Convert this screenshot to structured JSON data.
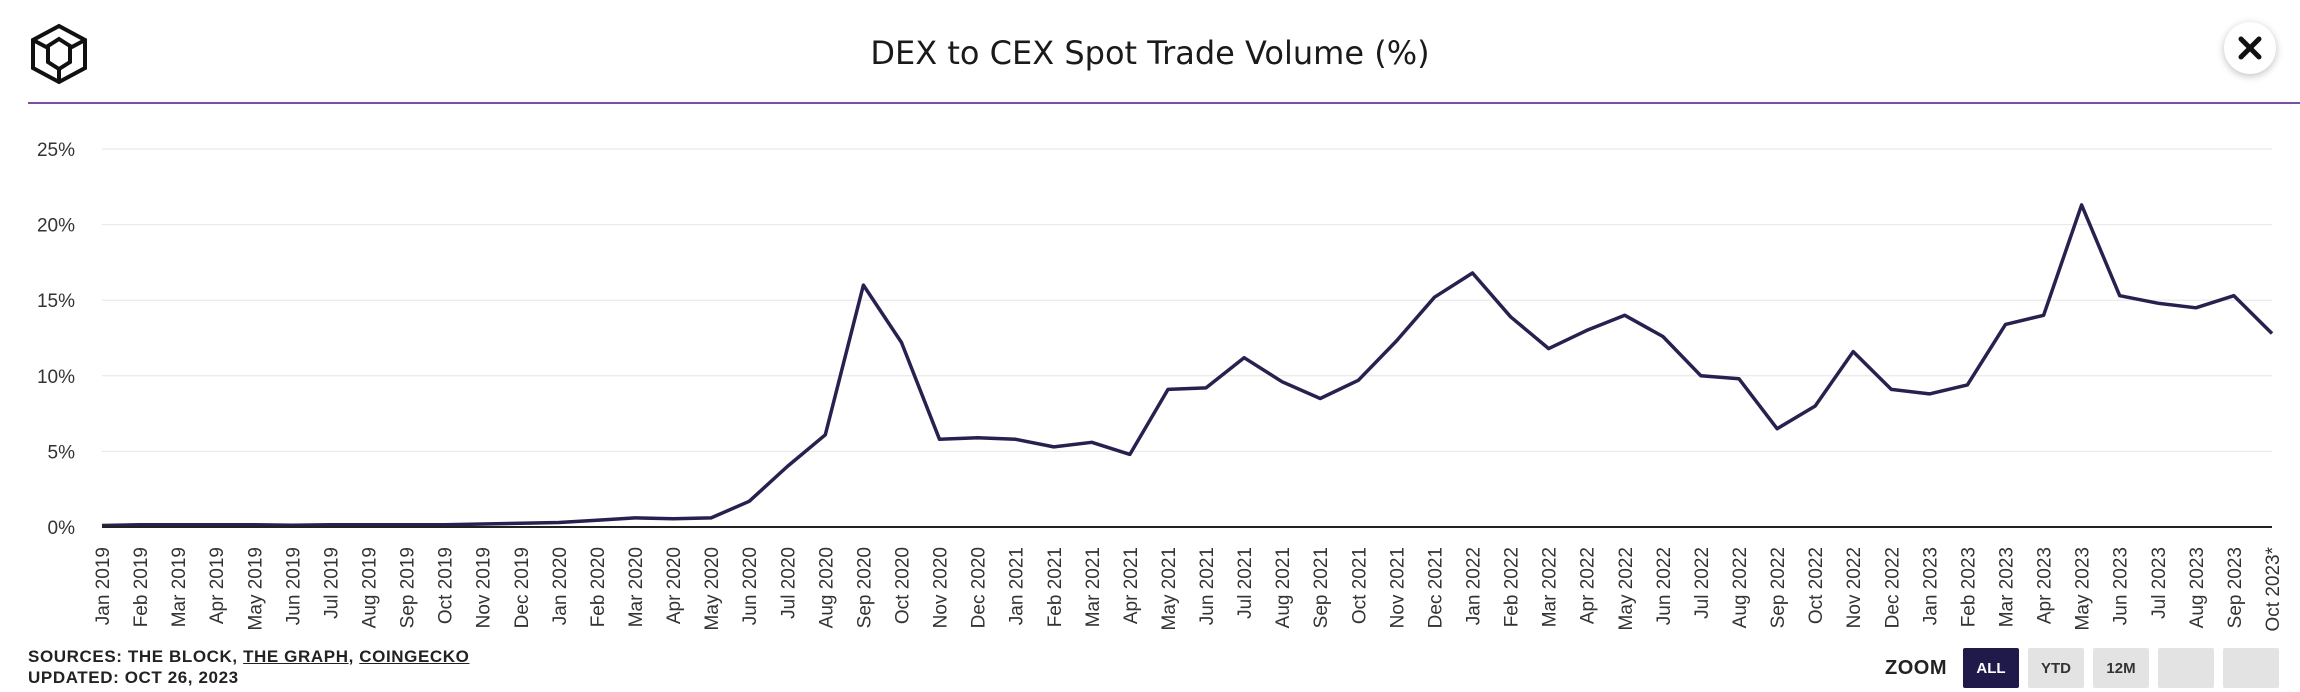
{
  "header": {
    "title": "DEX to CEX Spot Trade Volume (%)",
    "logo_icon": "cube-logo-icon",
    "close_icon": "close-icon"
  },
  "colors": {
    "line": "#27214f",
    "rule": "#7b4fa0",
    "grid": "#e6e6e6",
    "axis": "#222222",
    "zoom_active": "#1f1a4a",
    "zoom_inactive": "#e3e3e3"
  },
  "chart_data": {
    "type": "line",
    "title": "DEX to CEX Spot Trade Volume (%)",
    "xlabel": "",
    "ylabel": "",
    "ylim": [
      0,
      25
    ],
    "yticks": [
      "0%",
      "5%",
      "10%",
      "15%",
      "20%",
      "25%"
    ],
    "grid": true,
    "categories": [
      "Jan 2019",
      "Feb 2019",
      "Mar 2019",
      "Apr 2019",
      "May 2019",
      "Jun 2019",
      "Jul 2019",
      "Aug 2019",
      "Sep 2019",
      "Oct 2019",
      "Nov 2019",
      "Dec 2019",
      "Jan 2020",
      "Feb 2020",
      "Mar 2020",
      "Apr 2020",
      "May 2020",
      "Jun 2020",
      "Jul 2020",
      "Aug 2020",
      "Sep 2020",
      "Oct 2020",
      "Nov 2020",
      "Dec 2020",
      "Jan 2021",
      "Feb 2021",
      "Mar 2021",
      "Apr 2021",
      "May 2021",
      "Jun 2021",
      "Jul 2021",
      "Aug 2021",
      "Sep 2021",
      "Oct 2021",
      "Nov 2021",
      "Dec 2021",
      "Jan 2022",
      "Feb 2022",
      "Mar 2022",
      "Apr 2022",
      "May 2022",
      "Jun 2022",
      "Jul 2022",
      "Aug 2022",
      "Sep 2022",
      "Oct 2022",
      "Nov 2022",
      "Dec 2022",
      "Jan 2023",
      "Feb 2023",
      "Mar 2023",
      "Apr 2023",
      "May 2023",
      "Jun 2023",
      "Jul 2023",
      "Aug 2023",
      "Sep 2023",
      "Oct 2023*"
    ],
    "series": [
      {
        "values": [
          0.1,
          0.15,
          0.15,
          0.15,
          0.15,
          0.12,
          0.15,
          0.15,
          0.15,
          0.15,
          0.2,
          0.25,
          0.3,
          0.45,
          0.6,
          0.55,
          0.6,
          1.7,
          4.0,
          6.1,
          16.0,
          12.2,
          5.8,
          5.9,
          5.8,
          5.3,
          5.6,
          4.8,
          9.1,
          9.2,
          11.2,
          9.6,
          8.5,
          9.7,
          12.3,
          15.2,
          16.8,
          13.9,
          11.8,
          13.0,
          14.0,
          12.6,
          10.0,
          9.8,
          6.5,
          8.0,
          11.6,
          9.1,
          8.8,
          9.4,
          13.4,
          14.0,
          21.3,
          15.3,
          14.8,
          14.5,
          15.3,
          12.8
        ]
      }
    ]
  },
  "footer": {
    "sources_prefix": "SOURCES: THE BLOCK, ",
    "source_1": "THE GRAPH",
    "separator": ", ",
    "source_2": "COINGECKO",
    "updated": "UPDATED: OCT 26, 2023"
  },
  "zoom": {
    "label": "ZOOM",
    "buttons": [
      "ALL",
      "YTD",
      "12M",
      "",
      ""
    ],
    "active": "ALL"
  }
}
